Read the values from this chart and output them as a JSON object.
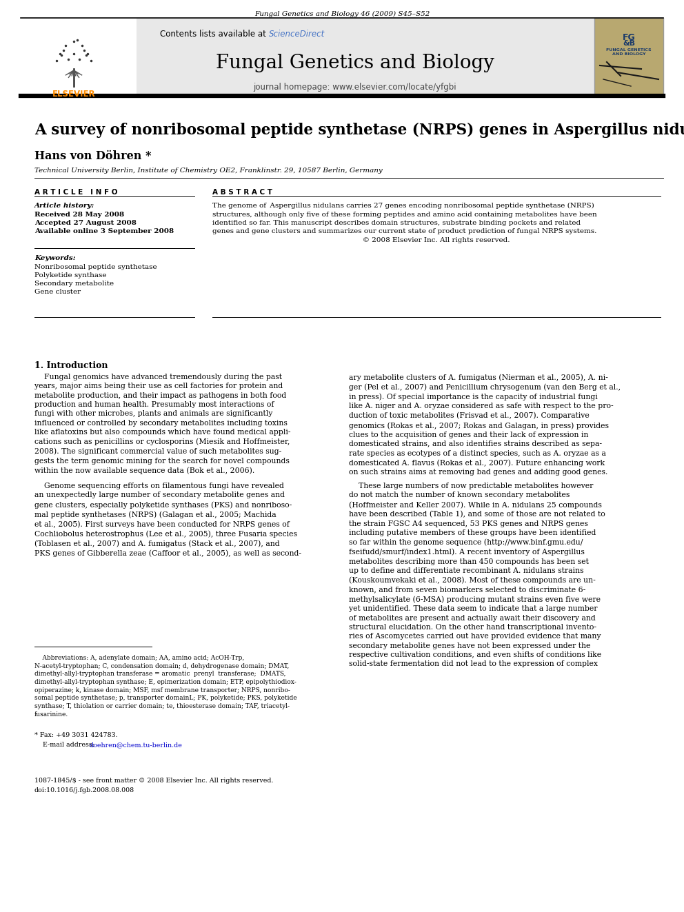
{
  "page_title": "Fungal Genetics and Biology 46 (2009) S45–S52",
  "journal_name": "Fungal Genetics and Biology",
  "journal_homepage": "journal homepage: www.elsevier.com/locate/yfgbi",
  "sciencedirect_color": "#4472C4",
  "elsevier_color": "#FF8C00",
  "article_title": "A survey of nonribosomal peptide synthetase (NRPS) genes in Aspergillus nidulans",
  "author": "Hans von Döhren *",
  "affiliation": "Technical University Berlin, Institute of Chemistry OE2, Franklinstr. 29, 10587 Berlin, Germany",
  "article_history_label": "Article history:",
  "article_history": [
    "Received 28 May 2008",
    "Accepted 27 August 2008",
    "Available online 3 September 2008"
  ],
  "keywords_label": "Keywords:",
  "keywords": [
    "Nonribosomal peptide synthetase",
    "Polyketide synthase",
    "Secondary metabolite",
    "Gene cluster"
  ],
  "abstract_copyright": "© 2008 Elsevier Inc. All rights reserved.",
  "intro_header": "1. Introduction",
  "bg_header_color": "#E8E8E8",
  "link_color": "#0000CC",
  "text_color": "#000000"
}
